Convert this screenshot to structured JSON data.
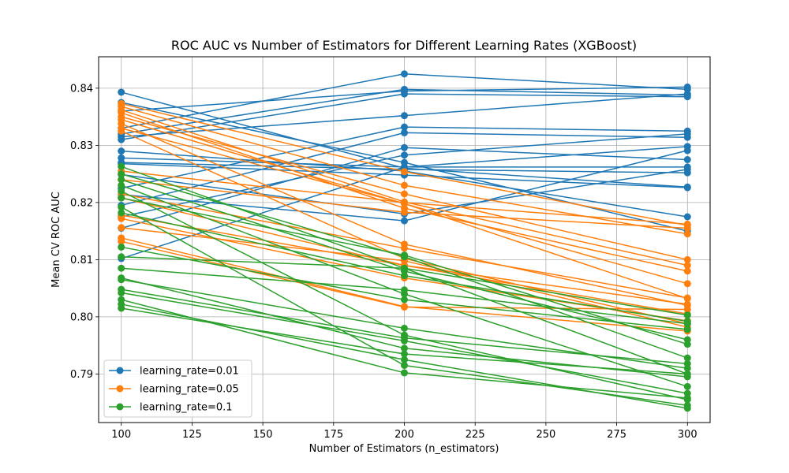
{
  "chart_data": {
    "type": "line",
    "title": "ROC AUC vs Number of Estimators for Different Learning Rates (XGBoost)",
    "xlabel": "Number of Estimators (n_estimators)",
    "ylabel": "Mean CV ROC AUC",
    "xlim": [
      92,
      308
    ],
    "ylim": [
      0.7815,
      0.8455
    ],
    "xticks": [
      100,
      125,
      150,
      175,
      200,
      225,
      250,
      275,
      300
    ],
    "yticks": [
      0.79,
      0.8,
      0.81,
      0.82,
      0.83,
      0.84
    ],
    "ytick_labels": [
      "0.79",
      "0.80",
      "0.81",
      "0.82",
      "0.83",
      "0.84"
    ],
    "grid": true,
    "legend_position": "lower-left",
    "x": [
      100,
      200,
      300
    ],
    "series": [
      {
        "name": "learning_rate=0.01",
        "color": "#1f77b4",
        "lines": [
          [
            0.8393,
            0.826,
            0.8227
          ],
          [
            0.8375,
            0.827,
            0.815
          ],
          [
            0.836,
            0.8395,
            0.8402
          ],
          [
            0.833,
            0.8425,
            0.8398
          ],
          [
            0.832,
            0.8398,
            0.8388
          ],
          [
            0.8315,
            0.8352,
            0.839
          ],
          [
            0.831,
            0.839,
            0.8385
          ],
          [
            0.829,
            0.8255,
            0.8175
          ],
          [
            0.8278,
            0.8262,
            0.8262
          ],
          [
            0.827,
            0.8258,
            0.8252
          ],
          [
            0.8268,
            0.8248,
            0.8226
          ],
          [
            0.8225,
            0.8332,
            0.8325
          ],
          [
            0.8195,
            0.8322,
            0.8314
          ],
          [
            0.8175,
            0.8283,
            0.832
          ],
          [
            0.8155,
            0.8296,
            0.8275
          ],
          [
            0.8102,
            0.8262,
            0.8298
          ],
          [
            0.8214,
            0.8168,
            0.8291
          ],
          [
            0.8249,
            0.818,
            0.8258
          ]
        ]
      },
      {
        "name": "learning_rate=0.05",
        "color": "#ff7f0e",
        "lines": [
          [
            0.8373,
            0.8254,
            0.816
          ],
          [
            0.8368,
            0.823,
            0.8145
          ],
          [
            0.8362,
            0.8201,
            0.809
          ],
          [
            0.8357,
            0.819,
            0.808
          ],
          [
            0.835,
            0.8215,
            0.81
          ],
          [
            0.8345,
            0.8198,
            0.8058
          ],
          [
            0.8338,
            0.8127,
            0.802
          ],
          [
            0.833,
            0.8198,
            0.8032
          ],
          [
            0.8325,
            0.8102,
            0.7988
          ],
          [
            0.8255,
            0.82,
            0.8162
          ],
          [
            0.824,
            0.8183,
            0.8155
          ],
          [
            0.8215,
            0.812,
            0.8033
          ],
          [
            0.8208,
            0.809,
            0.8022
          ],
          [
            0.8178,
            0.809,
            0.8005
          ],
          [
            0.8172,
            0.8068,
            0.7993
          ],
          [
            0.8156,
            0.8098,
            0.7982
          ],
          [
            0.8138,
            0.8018,
            0.7975
          ],
          [
            0.8132,
            0.8017,
            0.8013
          ]
        ]
      },
      {
        "name": "learning_rate=0.1",
        "color": "#2ca02c",
        "lines": [
          [
            0.8263,
            0.8085,
            0.79
          ],
          [
            0.825,
            0.8105,
            0.7928
          ],
          [
            0.824,
            0.808,
            0.796
          ],
          [
            0.823,
            0.804,
            0.7878
          ],
          [
            0.822,
            0.7968,
            0.7855
          ],
          [
            0.8192,
            0.7915,
            0.7845
          ],
          [
            0.8122,
            0.803,
            0.7978
          ],
          [
            0.8105,
            0.8085,
            0.8003
          ],
          [
            0.8085,
            0.8047,
            0.7988
          ],
          [
            0.8068,
            0.7945,
            0.7895
          ],
          [
            0.8065,
            0.798,
            0.791
          ],
          [
            0.8048,
            0.7963,
            0.7918
          ],
          [
            0.8042,
            0.7958,
            0.7866
          ],
          [
            0.803,
            0.7902,
            0.7858
          ],
          [
            0.8015,
            0.7935,
            0.79
          ],
          [
            0.8208,
            0.8108,
            0.7952
          ],
          [
            0.8182,
            0.8072,
            0.7992
          ],
          [
            0.8022,
            0.7925,
            0.784
          ]
        ]
      }
    ]
  }
}
